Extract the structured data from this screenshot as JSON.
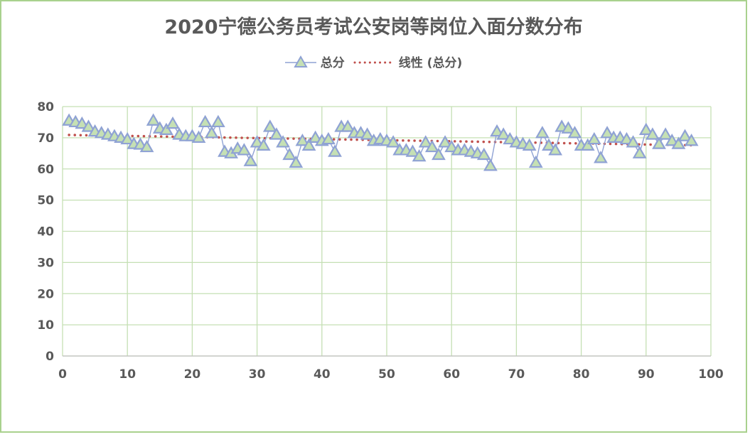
{
  "chart_data": {
    "type": "line",
    "title": "2020宁德公务员考试公安岗等岗位入面分数分布",
    "xlabel": "",
    "ylabel": "",
    "xlim": [
      0,
      100
    ],
    "ylim": [
      0,
      80
    ],
    "x_ticks": [
      "0",
      "10",
      "20",
      "30",
      "40",
      "50",
      "60",
      "70",
      "80",
      "90",
      "100"
    ],
    "y_ticks": [
      "0",
      "10",
      "20",
      "30",
      "40",
      "50",
      "60",
      "70",
      "80"
    ],
    "grid": true,
    "legend_position": "top",
    "series": [
      {
        "name": "总分",
        "color": "#8fa2d4",
        "marker_fill": "#c5e0b4",
        "x": [
          1,
          2,
          3,
          4,
          5,
          6,
          7,
          8,
          9,
          10,
          11,
          12,
          13,
          14,
          15,
          16,
          17,
          18,
          19,
          20,
          21,
          22,
          23,
          24,
          25,
          26,
          27,
          28,
          29,
          30,
          31,
          32,
          33,
          34,
          35,
          36,
          37,
          38,
          39,
          40,
          41,
          42,
          43,
          44,
          45,
          46,
          47,
          48,
          49,
          50,
          51,
          52,
          53,
          54,
          55,
          56,
          57,
          58,
          59,
          60,
          61,
          62,
          63,
          64,
          65,
          66,
          67,
          68,
          69,
          70,
          71,
          72,
          73,
          74,
          75,
          76,
          77,
          78,
          79,
          80,
          81,
          82,
          83,
          84,
          85,
          86,
          87,
          88,
          89,
          90,
          91,
          92,
          93,
          94,
          95,
          96,
          97
        ],
        "values": [
          75.5,
          75,
          74.5,
          73.5,
          72,
          71.5,
          71,
          70.5,
          70,
          69.5,
          68,
          67.8,
          67,
          75.5,
          73,
          72.5,
          74.5,
          71,
          70.5,
          70.5,
          70,
          75,
          71.5,
          75,
          65.5,
          65,
          66.5,
          66,
          62.5,
          68.5,
          67.5,
          73.5,
          71,
          68.5,
          64.5,
          62,
          69,
          67.5,
          70,
          69,
          69.5,
          65.5,
          73.5,
          73.5,
          71.5,
          71.5,
          71,
          69,
          69.5,
          69,
          68.5,
          66,
          66,
          65.5,
          64,
          68.5,
          67,
          64.5,
          68.5,
          67,
          66,
          66,
          65.5,
          65,
          64.5,
          61,
          72,
          71,
          69.5,
          68.5,
          68,
          67.5,
          62,
          71.5,
          67.5,
          66,
          73.5,
          73,
          71.5,
          67.5,
          67.5,
          69.5,
          63.5,
          71.5,
          70,
          70,
          69.5,
          68.5,
          65,
          72.5,
          71,
          68,
          71,
          69,
          68,
          70.5,
          69
        ]
      },
      {
        "name": "线性 (总分)",
        "type": "trendline",
        "color": "#c0504d",
        "x": [
          1,
          97
        ],
        "values": [
          70.9,
          67.6
        ]
      }
    ]
  }
}
